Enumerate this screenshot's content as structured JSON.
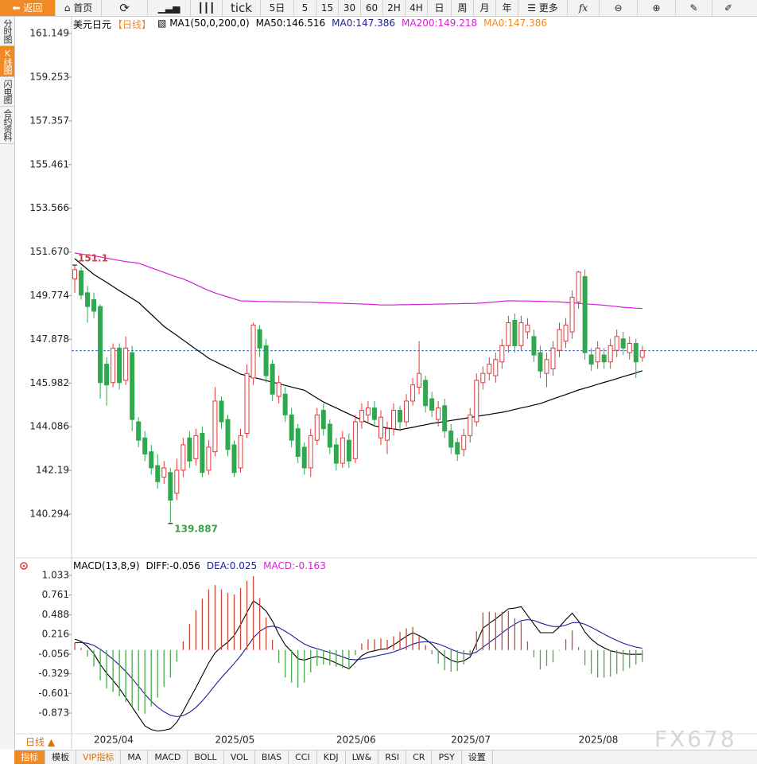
{
  "toolbar": {
    "back": "返回",
    "home": "首页",
    "tick": "tick",
    "periods": [
      "5日",
      "5",
      "15",
      "30",
      "60",
      "2H",
      "4H",
      "日",
      "周",
      "月",
      "年"
    ],
    "more": "更多"
  },
  "sidebar": [
    "分时图",
    "K线图",
    "闪电图",
    "合约资料"
  ],
  "period_switch": "日线 ▲",
  "indicator_tabs": [
    "指标",
    "模板",
    "VIP指标",
    "MA",
    "MACD",
    "BOLL",
    "VOL",
    "BIAS",
    "CCI",
    "KDJ",
    "LW&",
    "RSI",
    "CR",
    "PSY",
    "设置"
  ],
  "watermark": "FX678",
  "chart_data": [
    {
      "type": "candlestick",
      "title": "美元日元",
      "period": "【日线】",
      "indicator": "MA1(50,0,200,0)",
      "categories": [
        null,
        null,
        null,
        "2025/04",
        null,
        null,
        null,
        null,
        null,
        null,
        null,
        null,
        null,
        null,
        null,
        null,
        null,
        null,
        null,
        null,
        null,
        null,
        "2025/05",
        null,
        null,
        null,
        null,
        null,
        null,
        null,
        null,
        null,
        null,
        null,
        null,
        null,
        null,
        null,
        null,
        null,
        null,
        "2025/06",
        null,
        null,
        null,
        null,
        null,
        null,
        null,
        null,
        null,
        null,
        null,
        null,
        null,
        null,
        null,
        null,
        null,
        "2025/07",
        null,
        null,
        null,
        null,
        null,
        null,
        null,
        null,
        null,
        null,
        null,
        null,
        null,
        null,
        null,
        null,
        null,
        null,
        null,
        "2025/08",
        null,
        null,
        null,
        null,
        null,
        null,
        null,
        null,
        null,
        null
      ],
      "open": [
        150.5,
        150.85,
        149.9,
        149.6,
        149.3,
        146.8,
        146.0,
        147.5,
        146.1,
        147.3,
        144.3,
        143.6,
        143.0,
        142.4,
        141.9,
        142.1,
        141.2,
        142.2,
        143.6,
        142.7,
        143.8,
        142.2,
        143.0,
        145.2,
        144.4,
        143.3,
        142.3,
        143.8,
        146.2,
        148.3,
        147.6,
        146.8,
        145.4,
        145.5,
        144.6,
        144.0,
        143.2,
        142.3,
        143.5,
        144.8,
        144.2,
        143.3,
        142.5,
        143.5,
        142.7,
        144.3,
        144.6,
        144.9,
        143.6,
        143.5,
        144.0,
        144.8,
        144.3,
        145.2,
        145.8,
        146.1,
        145.3,
        144.4,
        145.0,
        143.9,
        143.4,
        143.1,
        143.7,
        144.3,
        146.0,
        146.4,
        146.3,
        146.9,
        147.6,
        148.7,
        147.6,
        148.2,
        148.0,
        147.3,
        146.4,
        146.6,
        147.4,
        147.8,
        148.2,
        149.5,
        150.6,
        147.2,
        146.9,
        147.2,
        146.9,
        147.4,
        147.9,
        147.3,
        147.7,
        147.1
      ],
      "high": [
        151.1,
        151.0,
        150.2,
        149.9,
        149.4,
        147.1,
        147.7,
        147.7,
        148.0,
        147.6,
        144.5,
        143.9,
        143.3,
        142.9,
        142.6,
        142.3,
        142.7,
        143.6,
        143.9,
        144.0,
        144.1,
        143.5,
        145.8,
        145.4,
        144.6,
        143.5,
        144.0,
        146.8,
        148.6,
        148.5,
        147.9,
        147.0,
        146.3,
        145.8,
        144.9,
        144.2,
        143.4,
        144.0,
        144.9,
        145.1,
        144.4,
        143.6,
        143.9,
        143.8,
        144.6,
        145.1,
        145.2,
        145.2,
        144.8,
        144.3,
        145.1,
        145.0,
        145.5,
        146.2,
        147.8,
        146.3,
        145.6,
        145.2,
        145.3,
        144.2,
        143.6,
        144.0,
        144.9,
        146.4,
        146.7,
        147.1,
        147.3,
        147.9,
        148.9,
        149.0,
        148.9,
        148.8,
        148.3,
        147.6,
        147.3,
        147.8,
        148.6,
        148.8,
        150.0,
        150.85,
        150.914,
        147.5,
        147.8,
        147.5,
        147.9,
        148.3,
        148.2,
        148.0,
        147.9,
        147.6
      ],
      "low": [
        149.9,
        149.6,
        148.6,
        148.8,
        145.3,
        145.0,
        145.8,
        145.7,
        145.9,
        143.9,
        143.2,
        142.6,
        142.0,
        141.4,
        141.6,
        139.887,
        140.9,
        141.9,
        142.3,
        142.4,
        141.9,
        142.0,
        142.8,
        144.0,
        142.8,
        141.9,
        142.1,
        143.6,
        145.9,
        147.1,
        146.0,
        145.2,
        145.1,
        144.3,
        143.2,
        142.5,
        142.0,
        141.9,
        143.3,
        143.7,
        142.9,
        142.2,
        142.3,
        142.3,
        142.5,
        144.0,
        144.3,
        144.1,
        143.3,
        142.9,
        143.7,
        144.0,
        144.1,
        145.0,
        145.5,
        144.7,
        144.5,
        144.1,
        143.6,
        142.9,
        142.6,
        142.8,
        143.4,
        144.1,
        145.7,
        146.1,
        146.0,
        146.6,
        147.3,
        147.3,
        147.4,
        147.9,
        146.9,
        146.2,
        145.8,
        146.3,
        147.1,
        147.5,
        147.9,
        149.2,
        147.0,
        146.5,
        146.6,
        146.6,
        146.6,
        147.1,
        147.2,
        147.0,
        146.2,
        146.9
      ],
      "close": [
        150.9,
        149.8,
        149.3,
        149.1,
        146.0,
        145.9,
        147.5,
        146.0,
        147.5,
        144.4,
        143.5,
        142.9,
        142.3,
        141.7,
        142.3,
        140.9,
        142.2,
        143.3,
        142.6,
        143.7,
        142.1,
        143.2,
        145.2,
        144.3,
        143.1,
        142.1,
        143.7,
        146.4,
        148.5,
        147.5,
        146.3,
        145.5,
        146.0,
        144.6,
        143.5,
        142.8,
        142.3,
        143.7,
        144.6,
        144.0,
        143.2,
        142.5,
        143.6,
        142.6,
        144.3,
        144.8,
        144.9,
        144.4,
        144.5,
        144.0,
        144.8,
        144.3,
        145.2,
        145.9,
        146.4,
        145.0,
        144.8,
        144.9,
        143.9,
        143.2,
        142.9,
        143.7,
        144.6,
        146.1,
        146.4,
        146.8,
        147.0,
        147.6,
        148.6,
        147.6,
        148.6,
        148.5,
        147.2,
        146.5,
        147.0,
        147.5,
        148.3,
        148.5,
        149.7,
        150.8,
        147.3,
        146.8,
        147.5,
        146.9,
        147.6,
        148.0,
        147.5,
        147.7,
        146.9,
        147.386
      ],
      "up_color": "#e03a3a",
      "down_color": "#2fa84f",
      "series": [
        {
          "name": "MA50:146.516",
          "color": "#000000",
          "values": [
            151.38,
            151.15,
            150.92,
            150.69,
            150.52,
            150.35,
            150.17,
            149.99,
            149.82,
            149.65,
            149.48,
            149.22,
            148.96,
            148.7,
            148.44,
            148.24,
            148.05,
            147.85,
            147.65,
            147.45,
            147.26,
            147.06,
            146.92,
            146.78,
            146.65,
            146.51,
            146.37,
            146.3,
            146.23,
            146.16,
            146.09,
            146.02,
            145.95,
            145.88,
            145.81,
            145.74,
            145.67,
            145.5,
            145.33,
            145.16,
            145.03,
            144.9,
            144.77,
            144.64,
            144.51,
            144.38,
            144.25,
            144.12,
            144.08,
            144.03,
            143.99,
            143.95,
            144.01,
            144.06,
            144.12,
            144.17,
            144.23,
            144.27,
            144.31,
            144.36,
            144.4,
            144.44,
            144.49,
            144.53,
            144.58,
            144.62,
            144.67,
            144.71,
            144.77,
            144.84,
            144.9,
            144.96,
            145.03,
            145.09,
            145.19,
            145.29,
            145.39,
            145.48,
            145.58,
            145.68,
            145.76,
            145.84,
            145.93,
            146.01,
            146.09,
            146.17,
            146.26,
            146.34,
            146.42,
            146.516
          ]
        },
        {
          "name": "MA0:147.386",
          "color": "#1c1c9c",
          "line_color": "#3a6fc8",
          "value": 147.386
        },
        {
          "name": "MA200:149.218",
          "color": "#d81ed8",
          "values": [
            151.62,
            151.58,
            151.54,
            151.5,
            151.45,
            151.4,
            151.35,
            151.3,
            151.25,
            151.22,
            151.18,
            151.08,
            150.98,
            150.88,
            150.78,
            150.68,
            150.58,
            150.5,
            150.38,
            150.25,
            150.12,
            150.0,
            149.89,
            149.8,
            149.72,
            149.63,
            149.55,
            149.54,
            149.53,
            149.52,
            149.52,
            149.51,
            149.51,
            149.5,
            149.5,
            149.5,
            149.49,
            149.49,
            149.48,
            149.47,
            149.46,
            149.45,
            149.44,
            149.43,
            149.42,
            149.41,
            149.4,
            149.39,
            149.37,
            149.37,
            149.37,
            149.38,
            149.38,
            149.39,
            149.39,
            149.4,
            149.4,
            149.41,
            149.41,
            149.42,
            149.42,
            149.43,
            149.43,
            149.44,
            149.46,
            149.48,
            149.5,
            149.53,
            149.55,
            149.55,
            149.54,
            149.54,
            149.53,
            149.53,
            149.52,
            149.51,
            149.5,
            149.48,
            149.46,
            149.44,
            149.42,
            149.4,
            149.38,
            149.36,
            149.33,
            149.3,
            149.27,
            149.25,
            149.23,
            149.218
          ]
        },
        {
          "name": "MA0:147.386",
          "color": "#f08a24"
        }
      ],
      "ylim": [
        138.43,
        161.91
      ],
      "yticks": [
        161.149,
        159.253,
        157.357,
        155.461,
        153.566,
        {
          "value": 151.67,
          "label": "151.670"
        },
        149.774,
        147.878,
        145.982,
        144.086,
        142.19,
        140.294
      ]
    },
    {
      "type": "macd",
      "title": "MACD(13,8,9)",
      "series": [
        {
          "name": "DIFF:-0.056",
          "color": "#000000",
          "values": [
            0.15,
            0.12,
            0.05,
            -0.05,
            -0.2,
            -0.32,
            -0.42,
            -0.53,
            -0.66,
            -0.79,
            -0.92,
            -1.05,
            -1.1,
            -1.12,
            -1.11,
            -1.09,
            -1.0,
            -0.85,
            -0.68,
            -0.52,
            -0.35,
            -0.18,
            -0.04,
            0.04,
            0.11,
            0.2,
            0.35,
            0.52,
            0.68,
            0.62,
            0.54,
            0.4,
            0.22,
            0.07,
            -0.02,
            -0.12,
            -0.14,
            -0.11,
            -0.09,
            -0.11,
            -0.14,
            -0.18,
            -0.22,
            -0.26,
            -0.17,
            -0.08,
            -0.03,
            -0.01,
            0.01,
            0.02,
            0.07,
            0.13,
            0.19,
            0.24,
            0.2,
            0.15,
            0.08,
            -0.01,
            -0.09,
            -0.14,
            -0.17,
            -0.15,
            -0.1,
            0.1,
            0.3,
            0.37,
            0.43,
            0.5,
            0.57,
            0.58,
            0.6,
            0.48,
            0.36,
            0.24,
            0.24,
            0.24,
            0.32,
            0.42,
            0.51,
            0.4,
            0.25,
            0.15,
            0.08,
            0.03,
            -0.01,
            -0.03,
            -0.05,
            -0.06,
            -0.06,
            -0.056
          ]
        },
        {
          "name": "DEA:0.025",
          "color": "#1c1c9c",
          "values": [
            0.1,
            0.104,
            0.093,
            0.064,
            0.011,
            -0.055,
            -0.128,
            -0.208,
            -0.298,
            -0.396,
            -0.501,
            -0.611,
            -0.709,
            -0.791,
            -0.855,
            -0.902,
            -0.922,
            -0.908,
            -0.862,
            -0.794,
            -0.705,
            -0.6,
            -0.488,
            -0.382,
            -0.284,
            -0.187,
            -0.08,
            0.04,
            0.168,
            0.258,
            0.314,
            0.331,
            0.309,
            0.261,
            0.205,
            0.14,
            0.084,
            0.045,
            0.018,
            -0.008,
            -0.034,
            -0.063,
            -0.094,
            -0.127,
            -0.136,
            -0.125,
            -0.106,
            -0.087,
            -0.068,
            -0.05,
            -0.026,
            0.005,
            0.042,
            0.082,
            0.106,
            0.115,
            0.108,
            0.084,
            0.049,
            0.011,
            -0.025,
            -0.05,
            -0.06,
            -0.028,
            0.038,
            0.104,
            0.169,
            0.235,
            0.302,
            0.358,
            0.406,
            0.421,
            0.409,
            0.375,
            0.348,
            0.326,
            0.325,
            0.344,
            0.377,
            0.382,
            0.356,
            0.315,
            0.268,
            0.22,
            0.174,
            0.133,
            0.096,
            0.065,
            0.04,
            0.025
          ]
        },
        {
          "name": "MACD:-0.163",
          "color": "#d81ed8",
          "bars": true,
          "values": [
            0.1,
            0.03,
            -0.09,
            -0.23,
            -0.42,
            -0.53,
            -0.58,
            -0.64,
            -0.72,
            -0.79,
            -0.84,
            -0.88,
            -0.78,
            -0.66,
            -0.51,
            -0.38,
            -0.16,
            0.12,
            0.36,
            0.55,
            0.71,
            0.84,
            0.9,
            0.84,
            0.79,
            0.77,
            0.86,
            0.96,
            1.02,
            0.72,
            0.45,
            0.14,
            -0.18,
            -0.38,
            -0.45,
            -0.52,
            -0.45,
            -0.31,
            -0.22,
            -0.2,
            -0.21,
            -0.23,
            -0.25,
            -0.27,
            -0.07,
            0.09,
            0.15,
            0.15,
            0.16,
            0.14,
            0.19,
            0.25,
            0.3,
            0.32,
            0.19,
            0.07,
            -0.06,
            -0.19,
            -0.28,
            -0.3,
            -0.29,
            -0.2,
            -0.08,
            0.26,
            0.52,
            0.53,
            0.52,
            0.53,
            0.54,
            0.44,
            0.39,
            0.12,
            -0.1,
            -0.27,
            -0.22,
            -0.17,
            -0.01,
            0.15,
            0.27,
            0.04,
            -0.21,
            -0.33,
            -0.38,
            -0.38,
            -0.37,
            -0.33,
            -0.29,
            -0.25,
            -0.2,
            -0.163
          ]
        }
      ],
      "up_color": "#c84a3a",
      "down_color": "#4aa84a",
      "ylim": [
        -1.159,
        1.253
      ],
      "yticks": [
        1.033,
        0.761,
        0.488,
        0.216,
        -0.056,
        -0.329,
        -0.601,
        -0.873
      ]
    }
  ]
}
